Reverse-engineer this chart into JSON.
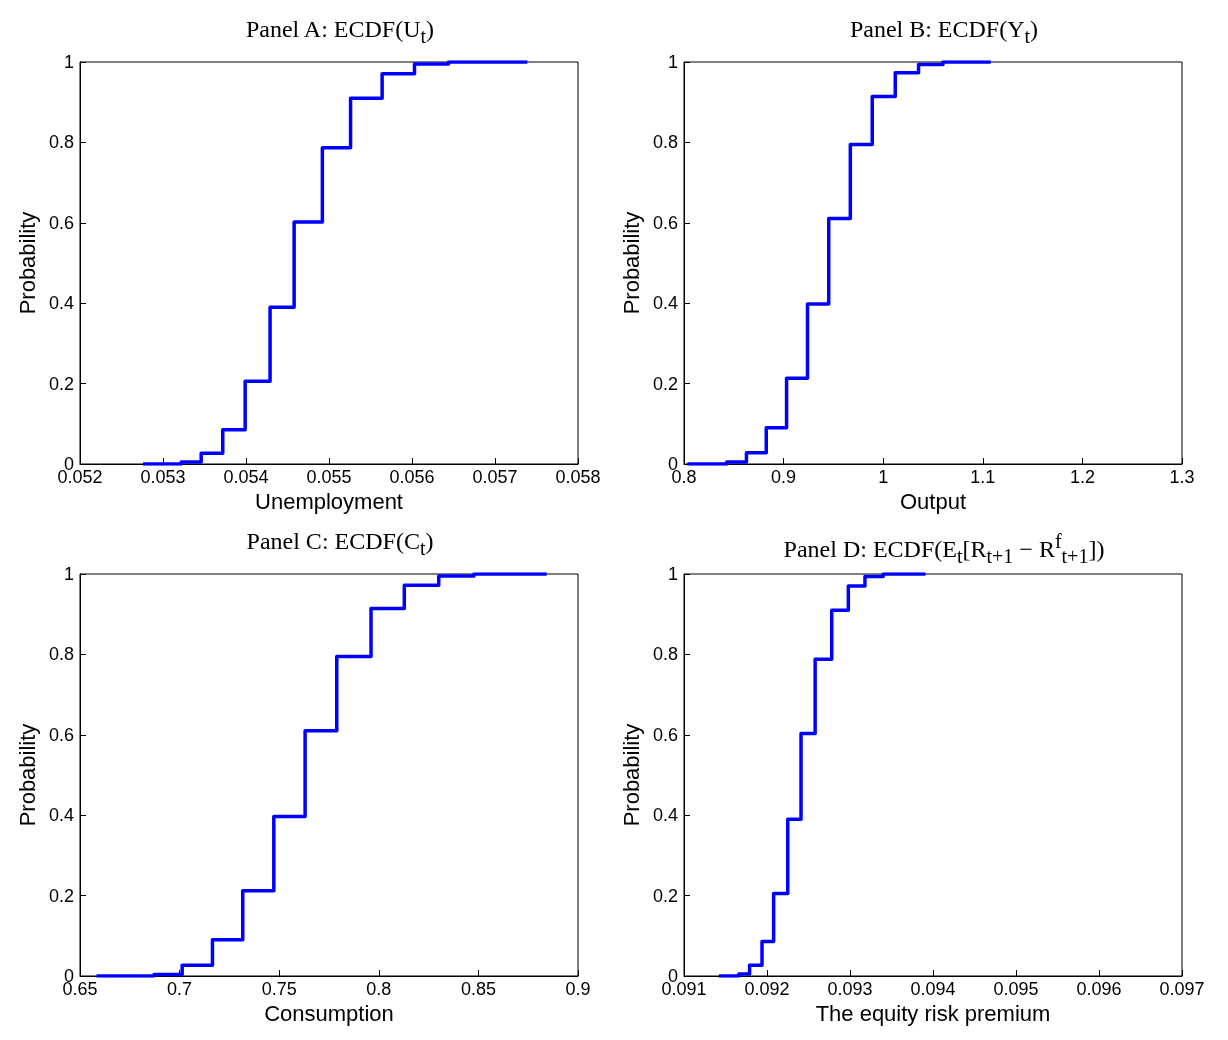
{
  "chart_data": [
    {
      "type": "step",
      "title": "Panel A: ECDF(U$_{t}$)",
      "xlabel": "Unemployment",
      "ylabel": "Probability",
      "color": "#0000ff",
      "marker": "none",
      "line_style": "solid",
      "x": [
        0.05276,
        0.05322,
        0.05346,
        0.05372,
        0.05399,
        0.05429,
        0.05458,
        0.05492,
        0.05526,
        0.05564,
        0.05603,
        0.05644,
        0.05739
      ],
      "values": [
        0,
        0.005,
        0.027,
        0.085,
        0.206,
        0.39,
        0.602,
        0.787,
        0.91,
        0.971,
        0.995,
        1,
        1
      ],
      "xlim": [
        0.052,
        0.058
      ],
      "xticks": [
        0.052,
        0.053,
        0.054,
        0.055,
        0.056,
        0.057,
        0.058
      ],
      "ylim": [
        0,
        1
      ],
      "yticks": [
        0,
        0.2,
        0.4,
        0.6,
        0.8,
        1
      ]
    },
    {
      "type": "step",
      "title": "Panel B: ECDF(Y$_{t}$)",
      "xlabel": "Output",
      "ylabel": "Probability",
      "color": "#0000ff",
      "marker": "none",
      "line_style": "solid",
      "x": [
        0.8034,
        0.843,
        0.8627,
        0.8826,
        0.903,
        0.924,
        0.9453,
        0.967,
        0.989,
        1.0121,
        1.0355,
        1.06,
        1.108
      ],
      "values": [
        0,
        0.005,
        0.028,
        0.09,
        0.213,
        0.398,
        0.611,
        0.795,
        0.914,
        0.973,
        0.994,
        1,
        1
      ],
      "xlim": [
        0.8,
        1.3
      ],
      "xticks": [
        0.8,
        0.9,
        1,
        1.1,
        1.2,
        1.3
      ],
      "ylim": [
        0,
        1
      ],
      "yticks": [
        0,
        0.2,
        0.4,
        0.6,
        0.8,
        1
      ]
    },
    {
      "type": "step",
      "title": "Panel C: ECDF(C$_{t}$)",
      "xlabel": "Consumption",
      "ylabel": "Probability",
      "color": "#0000ff",
      "marker": "none",
      "line_style": "solid",
      "x": [
        0.6583,
        0.6872,
        0.7013,
        0.7165,
        0.7317,
        0.7473,
        0.763,
        0.7789,
        0.7961,
        0.8128,
        0.8301,
        0.8478,
        0.8843
      ],
      "values": [
        0,
        0.004,
        0.027,
        0.09,
        0.212,
        0.397,
        0.61,
        0.795,
        0.914,
        0.972,
        0.995,
        1,
        1
      ],
      "xlim": [
        0.65,
        0.9
      ],
      "xticks": [
        0.65,
        0.7,
        0.75,
        0.8,
        0.85,
        0.9
      ],
      "ylim": [
        0,
        1
      ],
      "yticks": [
        0,
        0.2,
        0.4,
        0.6,
        0.8,
        1
      ]
    },
    {
      "type": "step",
      "title": "Panel D: ECDF(E$_{t}$[R$_{t+1}$ − R$^{f}$$_{t+1}$])",
      "xlabel": "The equity risk premium",
      "ylabel": "Probability",
      "color": "#0000ff",
      "marker": "none",
      "line_style": "solid",
      "x": [
        0.09142,
        0.09166,
        0.09179,
        0.09194,
        0.09208,
        0.09225,
        0.09241,
        0.09258,
        0.09278,
        0.09298,
        0.09318,
        0.0934,
        0.09391
      ],
      "values": [
        0,
        0.005,
        0.027,
        0.086,
        0.205,
        0.39,
        0.603,
        0.788,
        0.91,
        0.97,
        0.994,
        1,
        1
      ],
      "xlim": [
        0.091,
        0.097
      ],
      "xticks": [
        0.091,
        0.092,
        0.093,
        0.094,
        0.095,
        0.096,
        0.097
      ],
      "ylim": [
        0,
        1
      ],
      "yticks": [
        0,
        0.2,
        0.4,
        0.6,
        0.8,
        1
      ]
    }
  ]
}
